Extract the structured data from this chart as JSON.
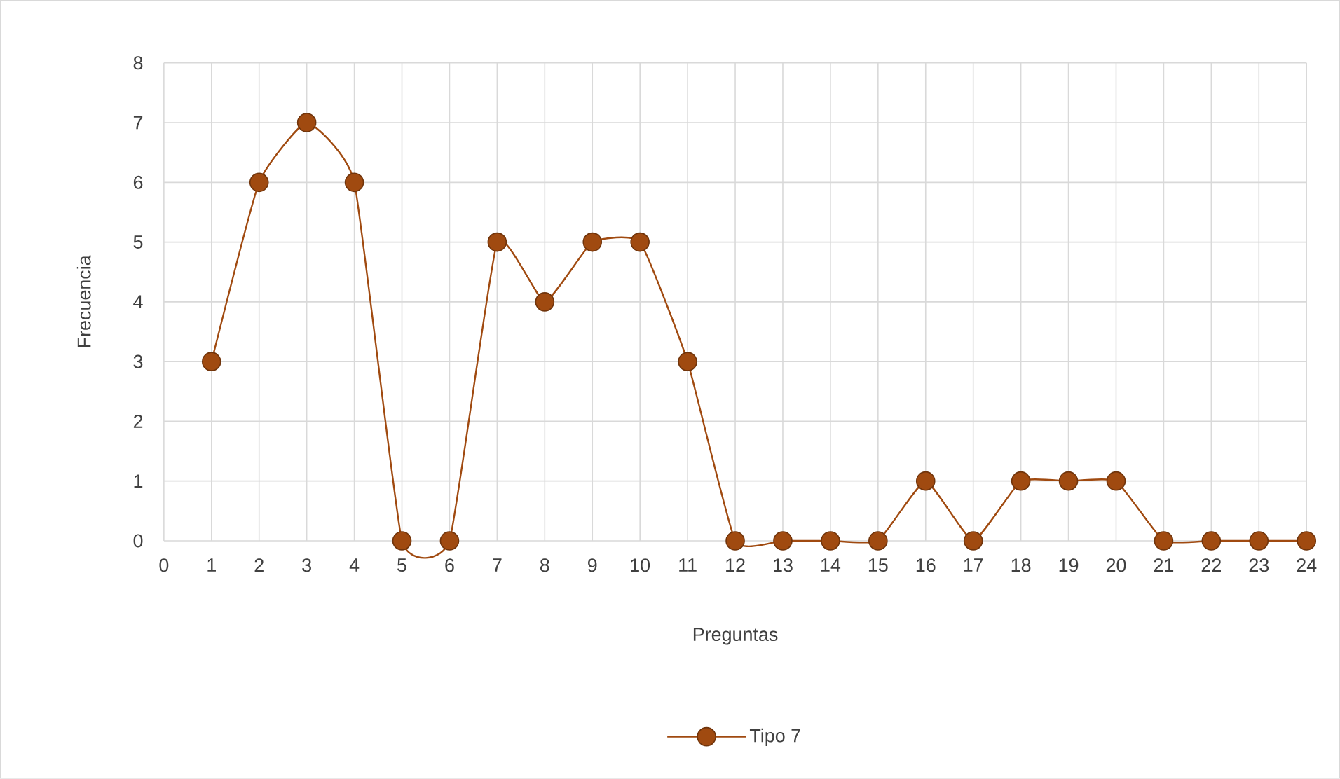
{
  "chart_data": {
    "type": "line",
    "xlabel": "Preguntas",
    "ylabel": "Frecuencia",
    "x": [
      1,
      2,
      3,
      4,
      5,
      6,
      7,
      8,
      9,
      10,
      11,
      12,
      13,
      14,
      15,
      16,
      17,
      18,
      19,
      20,
      21,
      22,
      23,
      24
    ],
    "series": [
      {
        "name": "Tipo 7",
        "color": "#a04a10",
        "values": [
          3,
          6,
          7,
          6,
          0,
          0,
          5,
          4,
          5,
          5,
          3,
          0,
          0,
          0,
          0,
          1,
          0,
          1,
          1,
          1,
          0,
          0,
          0,
          0
        ]
      }
    ],
    "xlim": [
      0,
      24
    ],
    "xticks": [
      0,
      1,
      2,
      3,
      4,
      5,
      6,
      7,
      8,
      9,
      10,
      11,
      12,
      13,
      14,
      15,
      16,
      17,
      18,
      19,
      20,
      21,
      22,
      23,
      24
    ],
    "ylim": [
      0,
      8
    ],
    "yticks": [
      0,
      1,
      2,
      3,
      4,
      5,
      6,
      7,
      8
    ],
    "grid": true,
    "legend": "bottom",
    "marker": "circle"
  }
}
